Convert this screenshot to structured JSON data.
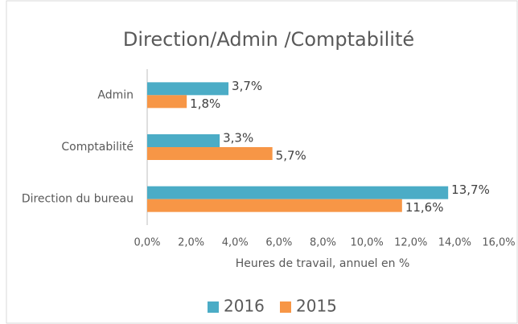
{
  "chart_data": {
    "type": "bar",
    "orientation": "horizontal",
    "title": "Direction/Admin /Comptabilité",
    "x_label": "Heures de travail, annuel en %",
    "categories": [
      "Admin",
      "Comptabilité",
      "Direction du bureau"
    ],
    "series": [
      {
        "name": "2016",
        "color": "#4bacc6",
        "values": [
          3.7,
          3.3,
          13.7
        ],
        "value_labels": [
          "3,7%",
          "3,3%",
          "13,7%"
        ]
      },
      {
        "name": "2015",
        "color": "#f79646",
        "values": [
          1.8,
          5.7,
          11.6
        ],
        "value_labels": [
          "1,8%",
          "5,7%",
          "11,6%"
        ]
      }
    ],
    "xlim": [
      0,
      16
    ],
    "xticks": [
      {
        "value": 0,
        "label": "0,0%"
      },
      {
        "value": 2,
        "label": "2,0%"
      },
      {
        "value": 4,
        "label": "4,0%"
      },
      {
        "value": 6,
        "label": "6,0%"
      },
      {
        "value": 8,
        "label": "8,0%"
      },
      {
        "value": 10,
        "label": "10,0%"
      },
      {
        "value": 12,
        "label": "12,0%"
      },
      {
        "value": 14,
        "label": "14,0%"
      },
      {
        "value": 16,
        "label": "16,0%"
      }
    ],
    "legend": "bottom"
  }
}
